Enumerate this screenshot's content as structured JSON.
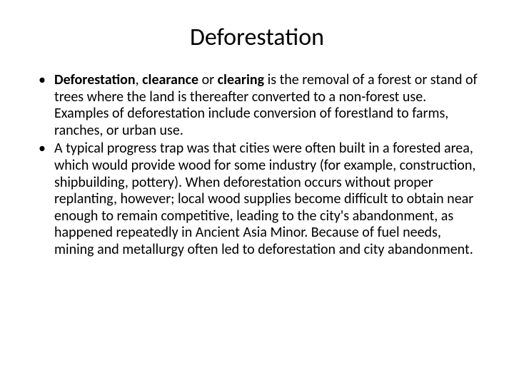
{
  "title": "Deforestation",
  "bullets": [
    {
      "bold_terms": "Deforestation",
      "mid1": ", ",
      "bold2": "clearance",
      "mid2": " or ",
      "bold3": "clearing",
      "rest": " is the removal of a forest or stand of trees where the land is thereafter converted to a non-forest use. Examples of deforestation include conversion of forestland to farms, ranches, or urban use."
    },
    {
      "text": "A typical progress trap was that cities were often built in a forested area, which would provide wood for some industry (for example, construction, shipbuilding, pottery). When deforestation occurs without proper replanting, however; local wood supplies become difficult to obtain near enough to remain competitive, leading to the city's abandonment, as happened repeatedly in Ancient Asia Minor. Because of fuel needs, mining and metallurgy often led to deforestation and city abandonment."
    }
  ],
  "colors": {
    "background": "#ffffff",
    "text": "#000000"
  },
  "typography": {
    "title_fontsize": 34,
    "body_fontsize": 20,
    "font_family": "Calibri"
  }
}
